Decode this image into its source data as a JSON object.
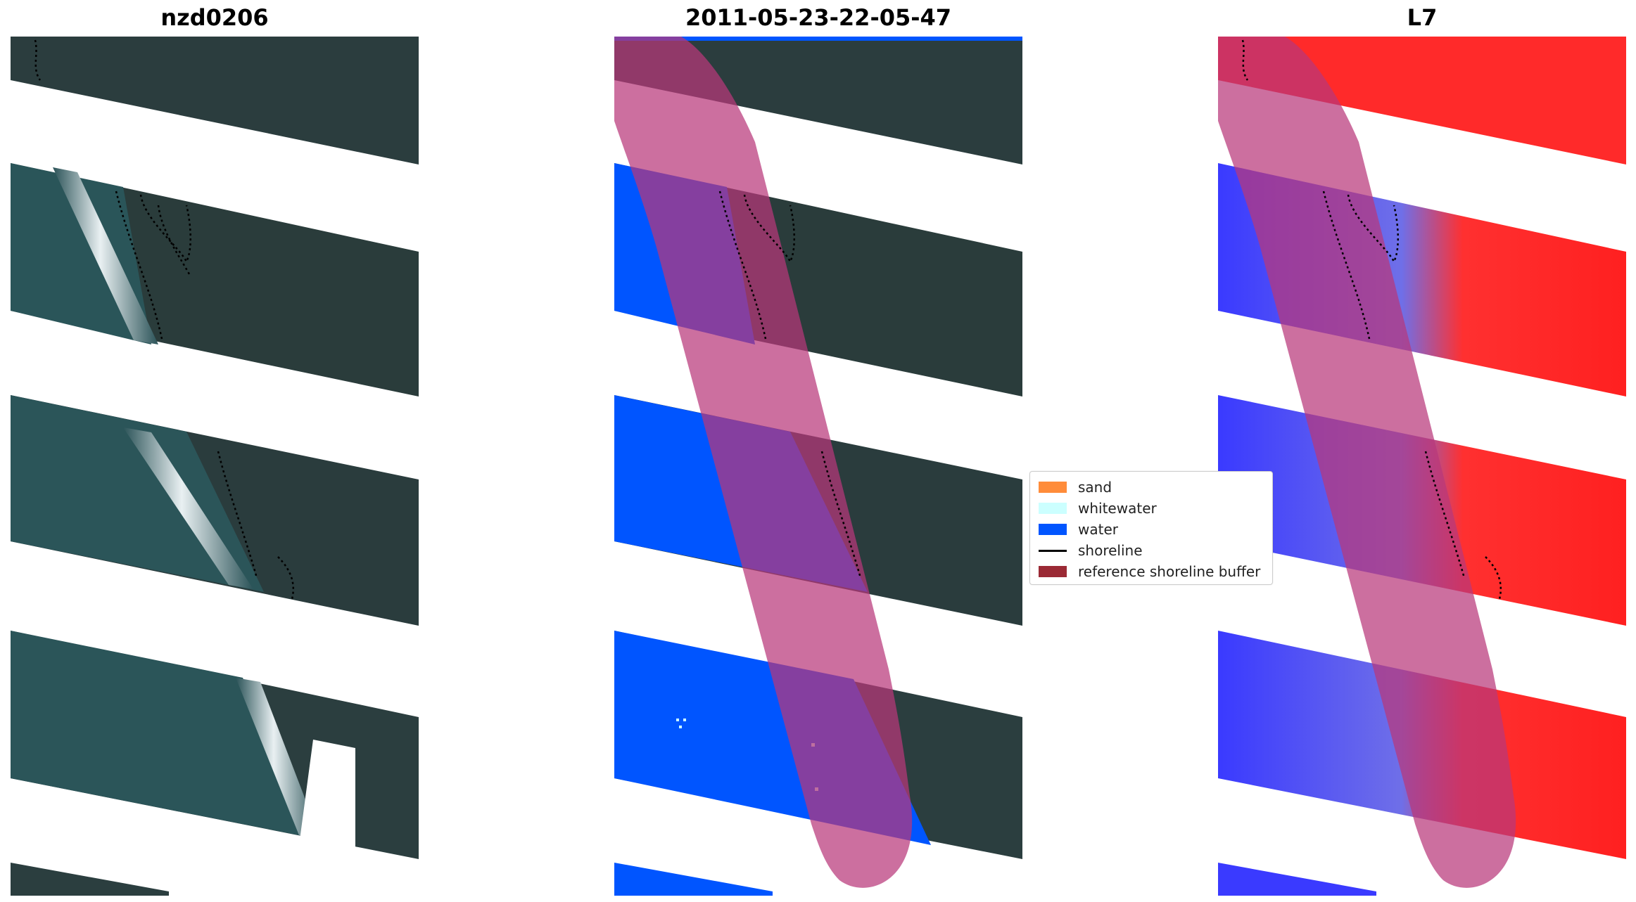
{
  "panels": [
    {
      "title": "nzd0206"
    },
    {
      "title": "2011-05-23-22-05-47"
    },
    {
      "title": "L7"
    }
  ],
  "legend": {
    "items": [
      {
        "label": "sand",
        "color": "#ff8c3a"
      },
      {
        "label": "whitewater",
        "color": "#ccffff"
      },
      {
        "label": "water",
        "color": "#0055ff"
      },
      {
        "label": "shoreline",
        "color": "#000000"
      },
      {
        "label": "reference shoreline buffer",
        "color": "#9b2a35"
      }
    ]
  },
  "colors": {
    "land": "#2a3d3f",
    "sea": "#29545a",
    "surf": "#e8eef0",
    "water_class": "#0055ff",
    "buffer": "#b8377a",
    "index_positive": "#ff2020",
    "index_negative": "#3838ff"
  }
}
